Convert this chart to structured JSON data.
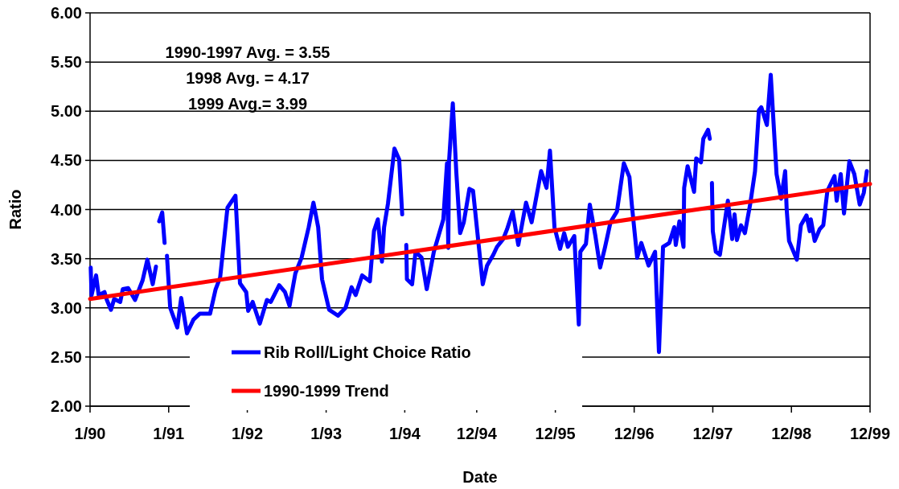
{
  "chart_data": {
    "type": "line",
    "xlabel": "Date",
    "ylabel": "Ratio",
    "xlim": [
      "1990-01",
      "1999-12"
    ],
    "xticks": [
      {
        "value": "1990-01",
        "label": "1/90"
      },
      {
        "value": "1991-01",
        "label": "1/91"
      },
      {
        "value": "1992-01",
        "label": "1/92"
      },
      {
        "value": "1993-01",
        "label": "1/93"
      },
      {
        "value": "1994-01",
        "label": "1/94"
      },
      {
        "value": "1994-12",
        "label": "12/94"
      },
      {
        "value": "1995-12",
        "label": "12/95"
      },
      {
        "value": "1996-12",
        "label": "12/96"
      },
      {
        "value": "1997-12",
        "label": "12/97"
      },
      {
        "value": "1998-12",
        "label": "12/98"
      },
      {
        "value": "1999-12",
        "label": "12/99"
      }
    ],
    "ylim": [
      2,
      6
    ],
    "yticks": [
      {
        "value": 2,
        "label": "2.00"
      },
      {
        "value": 2.5,
        "label": "2.50"
      },
      {
        "value": 3,
        "label": "3.00"
      },
      {
        "value": 3.5,
        "label": "3.50"
      },
      {
        "value": 4,
        "label": "4.00"
      },
      {
        "value": 4.5,
        "label": "4.50"
      },
      {
        "value": 5,
        "label": "5.00"
      },
      {
        "value": 5.5,
        "label": "5.50"
      },
      {
        "value": 6,
        "label": "6.00"
      }
    ],
    "grid": "y",
    "legend": "bottom",
    "line_style": "solid",
    "annotations": [
      "1990-1997 Avg. = 3.55",
      "1998 Avg. = 4.17",
      "1999 Avg.= 3.99"
    ],
    "series": [
      {
        "name": "Rib Roll/Light Choice Ratio",
        "color": "#0000ff",
        "x": [
          "1990-01-04",
          "1990-01-08",
          "1990-01-29",
          "1990-02-10",
          "1990-03-09",
          "1990-03-20",
          "1990-04-08",
          "1990-04-23",
          "1990-05-21",
          "1990-06-02",
          "1990-06-27",
          "1990-07-29",
          "1990-09-02",
          "1990-09-24",
          "1990-10-19",
          "1990-11-03",
          "1990-11-11",
          "1990-11-18",
          "1990-12-02",
          "1990-12-13",
          "1990-12-18",
          "1990-12-24",
          "1991-01-08",
          "1991-02-10",
          "1991-02-28",
          "1991-03-27",
          "1991-04-26",
          "1991-05-25",
          "1991-07-12",
          "1991-08-07",
          "1991-08-28",
          "1991-10-01",
          "1991-11-07",
          "1991-11-28",
          "1991-12-27",
          "1992-01-05",
          "1992-01-26",
          "1992-02-28",
          "1992-04-01",
          "1992-04-19",
          "1992-05-28",
          "1992-06-24",
          "1992-07-15",
          "1992-08-11",
          "1992-09-09",
          "1992-10-12",
          "1992-11-03",
          "1992-11-25",
          "1992-12-13",
          "1993-01-15",
          "1993-02-25",
          "1993-04-01",
          "1993-04-29",
          "1993-05-18",
          "1993-06-17",
          "1993-07-23",
          "1993-08-11",
          "1993-08-29",
          "1993-09-17",
          "1993-09-27",
          "1993-10-15",
          "1993-11-14",
          "1993-12-06",
          "1993-12-20",
          "1994-01-01",
          "1994-01-08",
          "1994-01-11",
          "1994-02-04",
          "1994-02-20",
          "1994-03-20",
          "1994-04-13",
          "1994-05-16",
          "1994-06-29",
          "1994-07-16",
          "1994-07-22",
          "1994-07-25",
          "1994-08-12",
          "1994-08-28",
          "1994-09-15",
          "1994-10-02",
          "1994-10-28",
          "1994-11-14",
          "1994-11-24",
          "1994-12-29",
          "1995-01-18",
          "1995-02-16",
          "1995-03-05",
          "1995-04-03",
          "1995-04-21",
          "1995-05-17",
          "1995-06-12",
          "1995-07-18",
          "1995-08-13",
          "1995-09-26",
          "1995-10-21",
          "1995-11-06",
          "1995-11-27",
          "1995-12-23",
          "1996-01-11",
          "1996-01-28",
          "1996-02-27",
          "1996-03-19",
          "1996-03-26",
          "1996-04-21",
          "1996-05-09",
          "1996-06-04",
          "1996-06-26",
          "1996-07-18",
          "1996-08-13",
          "1996-09-12",
          "1996-10-14",
          "1996-11-09",
          "1996-11-20",
          "1996-12-15",
          "1997-01-03",
          "1997-02-06",
          "1997-03-08",
          "1997-03-26",
          "1997-04-14",
          "1997-05-13",
          "1997-06-05",
          "1997-06-12",
          "1997-06-29",
          "1997-07-18",
          "1997-07-21",
          "1997-08-06",
          "1997-09-05",
          "1997-09-15",
          "1997-10-07",
          "1997-10-18",
          "1997-11-09",
          "1997-11-17",
          "1997-11-24",
          "1997-11-27",
          "1997-12-01",
          "1997-12-15",
          "1998-01-03",
          "1998-02-09",
          "1998-03-01",
          "1998-03-12",
          "1998-03-23",
          "1998-04-11",
          "1998-04-29",
          "1998-05-24",
          "1998-06-15",
          "1998-07-03",
          "1998-07-14",
          "1998-08-09",
          "1998-08-27",
          "1998-09-23",
          "1998-10-14",
          "1998-11-02",
          "1998-11-09",
          "1998-11-20",
          "1998-12-26",
          "1999-01-14",
          "1999-02-09",
          "1999-02-24",
          "1999-03-01",
          "1999-03-19",
          "1999-04-11",
          "1999-04-28",
          "1999-05-17",
          "1999-06-19",
          "1999-06-29",
          "1999-07-18",
          "1999-08-02",
          "1999-08-27",
          "1999-09-19",
          "1999-10-14",
          "1999-11-02",
          "1999-11-16"
        ],
        "values": [
          3.41,
          3.13,
          3.33,
          3.13,
          3.16,
          3.08,
          2.98,
          3.09,
          3.06,
          3.19,
          3.2,
          3.08,
          3.28,
          3.49,
          3.24,
          3.42,
          null,
          3.88,
          3.97,
          3.66,
          null,
          3.53,
          3.0,
          2.8,
          3.1,
          2.74,
          2.88,
          2.94,
          2.94,
          3.19,
          3.31,
          4.02,
          4.14,
          3.25,
          3.16,
          2.97,
          3.06,
          2.84,
          3.08,
          3.06,
          3.23,
          3.16,
          3.02,
          3.35,
          3.51,
          3.82,
          4.07,
          3.82,
          3.29,
          2.98,
          2.92,
          3.0,
          3.21,
          3.13,
          3.33,
          3.27,
          3.78,
          3.9,
          3.47,
          3.82,
          4.06,
          4.62,
          4.51,
          3.95,
          null,
          3.64,
          3.29,
          3.24,
          3.57,
          3.51,
          3.19,
          3.57,
          3.9,
          4.47,
          3.61,
          4.47,
          5.08,
          4.39,
          3.76,
          3.87,
          4.21,
          4.19,
          3.98,
          3.24,
          3.43,
          3.54,
          3.62,
          3.7,
          3.8,
          3.98,
          3.64,
          4.07,
          3.87,
          4.39,
          4.22,
          4.6,
          3.82,
          3.6,
          3.76,
          3.62,
          3.73,
          2.83,
          3.57,
          3.65,
          4.05,
          3.73,
          3.41,
          3.61,
          3.87,
          3.98,
          4.47,
          4.33,
          4.05,
          3.51,
          3.66,
          3.43,
          3.57,
          2.55,
          3.62,
          3.66,
          3.82,
          3.64,
          3.88,
          3.62,
          4.22,
          4.44,
          4.18,
          4.52,
          4.48,
          4.72,
          4.81,
          4.72,
          null,
          4.27,
          3.78,
          3.57,
          3.54,
          4.09,
          3.7,
          3.95,
          3.69,
          3.84,
          3.76,
          4.06,
          4.39,
          5.01,
          5.04,
          4.86,
          5.37,
          4.36,
          4.11,
          4.39,
          4.0,
          3.68,
          3.49,
          3.84,
          3.94,
          3.78,
          3.9,
          3.68,
          3.8,
          3.84,
          4.19,
          4.34,
          4.09,
          4.36,
          3.96,
          4.49,
          4.36,
          4.05,
          4.17,
          4.39
        ]
      },
      {
        "name": "1990-1999 Trend",
        "color": "#ff0000",
        "x": [
          "1990-01-01",
          "1999-12-01"
        ],
        "values": [
          3.09,
          4.26
        ]
      }
    ]
  }
}
